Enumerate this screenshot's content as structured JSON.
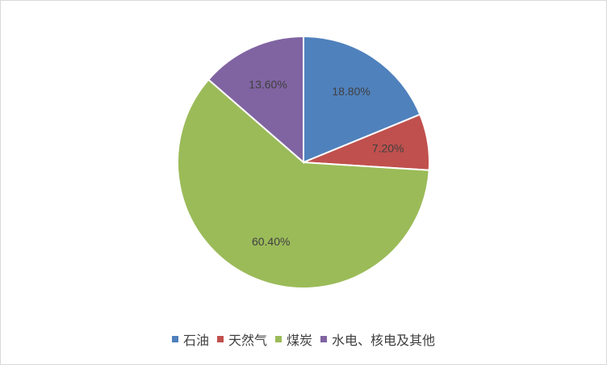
{
  "chart_data": {
    "type": "pie",
    "title": "",
    "slices": [
      {
        "label": "石油",
        "value": 18.8,
        "display": "18.80%",
        "color": "#4F81BD"
      },
      {
        "label": "天然气",
        "value": 7.2,
        "display": "7.20%",
        "color": "#C0504D"
      },
      {
        "label": "煤炭",
        "value": 60.4,
        "display": "60.40%",
        "color": "#9BBB59"
      },
      {
        "label": "水电、核电及其他",
        "value": 13.6,
        "display": "13.60%",
        "color": "#8064A2"
      }
    ],
    "legend_position": "bottom"
  }
}
